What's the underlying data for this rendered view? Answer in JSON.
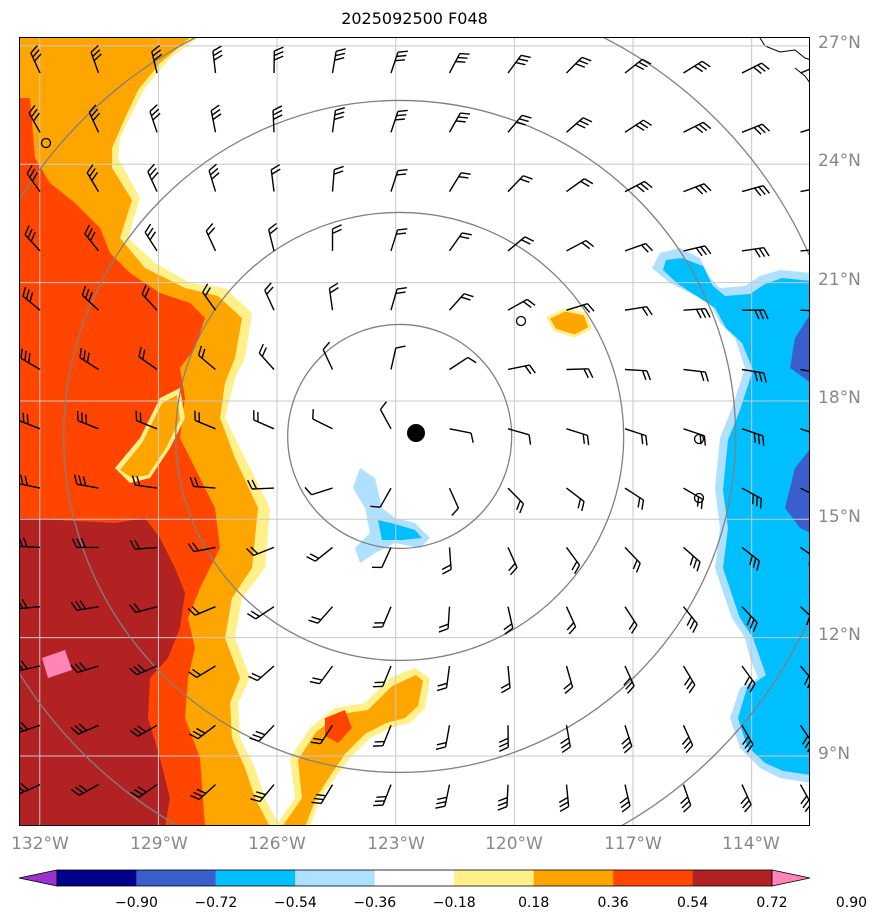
{
  "title": "2025092500 F048",
  "lat_labels": [
    "27°N",
    "24°N",
    "21°N",
    "18°N",
    "15°N",
    "12°N",
    "9°N"
  ],
  "lon_labels": [
    "132°W",
    "129°W",
    "126°W",
    "123°W",
    "120°W",
    "117°W",
    "114°W"
  ],
  "colorbar": {
    "labels": [
      "−0.90",
      "−0.72",
      "−0.54",
      "−0.36",
      "−0.18",
      "0.18",
      "0.36",
      "0.54",
      "0.72",
      "0.90"
    ],
    "colors": [
      "#9933cc",
      "#00008b",
      "#3a5fcd",
      "#00bfff",
      "#b0e0ff",
      "#ffffff",
      "#fff08a",
      "#ffa500",
      "#ff4500",
      "#b22222",
      "#ff85b8"
    ]
  },
  "storm_center": {
    "lon": -122.9,
    "lat": 17.1
  },
  "range_rings": {
    "count": 4
  },
  "colors": {
    "gridline": "#c8c8c8",
    "ring": "#808080",
    "coast": "#000000",
    "barb": "#000000"
  }
}
